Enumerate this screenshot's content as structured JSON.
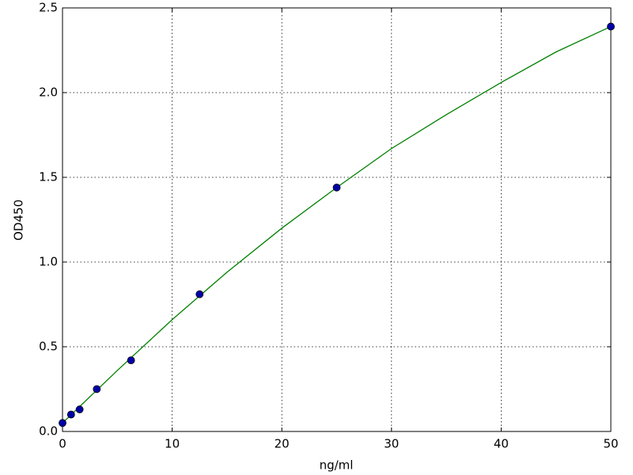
{
  "chart_data": {
    "type": "scatter",
    "xlabel": "ng/ml",
    "ylabel": "OD450",
    "xlim": [
      0,
      50
    ],
    "ylim": [
      0,
      2.5
    ],
    "xticks": [
      0,
      10,
      20,
      30,
      40,
      50
    ],
    "yticks": [
      {
        "value": 0,
        "label": "0.0"
      },
      0.5,
      {
        "value": 1,
        "label": "1.0"
      },
      1.5,
      {
        "value": 2,
        "label": "2.0"
      },
      2.5
    ],
    "grid": true,
    "series": [
      {
        "type": "line",
        "color": "#008000",
        "x": [
          0,
          5,
          10,
          15,
          20,
          25,
          30,
          35,
          40,
          45,
          50
        ],
        "values": [
          0.05,
          0.36,
          0.66,
          0.94,
          1.2,
          1.44,
          1.67,
          1.87,
          2.06,
          2.24,
          2.39
        ]
      },
      {
        "type": "scatter",
        "color": "#0000aa",
        "x": [
          0,
          0.78,
          1.56,
          3.125,
          6.25,
          12.5,
          25,
          50
        ],
        "values": [
          0.05,
          0.1,
          0.13,
          0.25,
          0.42,
          0.81,
          1.44,
          2.39
        ]
      }
    ]
  }
}
